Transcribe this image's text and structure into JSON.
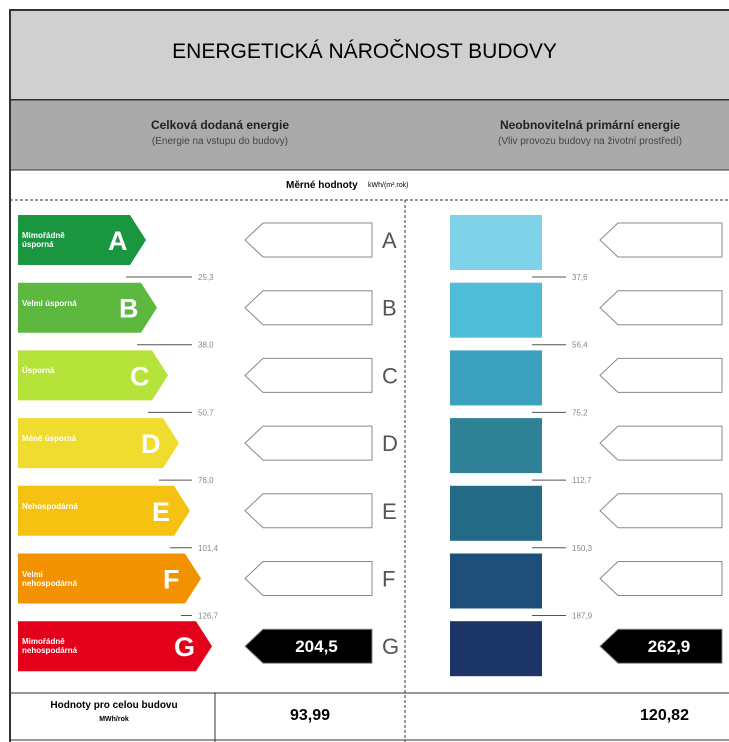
{
  "header": {
    "title": "ENERGETICKÁ NÁROČNOST BUDOVY"
  },
  "columns": [
    {
      "title": "Celková dodaná energie",
      "subtitle": "(Energie na vstupu do budovy)"
    },
    {
      "title": "Neobnovitelná primární energie",
      "subtitle": "(Vliv provozu budovy na životní prostředí)"
    }
  ],
  "units_row": {
    "label": "Měrné hodnoty",
    "unit": "kWh/(m².rok)"
  },
  "classes": [
    {
      "letter": "A",
      "label": "Mimořádně úsporná",
      "color": "#1a9641"
    },
    {
      "letter": "B",
      "label": "Velmi úsporná",
      "color": "#5cb83e"
    },
    {
      "letter": "C",
      "label": "Úsporná",
      "color": "#b5e33a"
    },
    {
      "letter": "D",
      "label": "Méně úsporná",
      "color": "#f0dc2e"
    },
    {
      "letter": "E",
      "label": "Nehospodárná",
      "color": "#f5c211"
    },
    {
      "letter": "F",
      "label": "Velmi nehospodárná",
      "color": "#f39200"
    },
    {
      "letter": "G",
      "label": "Mimořádně nehospodárná",
      "color": "#e3001b"
    }
  ],
  "blue_colors": [
    "#7fd3e8",
    "#4fbcd8",
    "#3aa0bc",
    "#2f8296",
    "#236a86",
    "#1e4f7a",
    "#1a3566"
  ],
  "thresholds_left": [
    "25,3",
    "38,0",
    "50,7",
    "76,0",
    "101,4",
    "126,7"
  ],
  "thresholds_right": [
    "37,6",
    "56,4",
    "75,2",
    "112,7",
    "150,3",
    "187,9"
  ],
  "indicator": {
    "class_index": 6,
    "left": "204,5",
    "right": "262,9"
  },
  "footer": {
    "label": "Hodnoty pro celou budovu",
    "unit": "MWh/rok",
    "left": "93,99",
    "right": "120,82"
  }
}
